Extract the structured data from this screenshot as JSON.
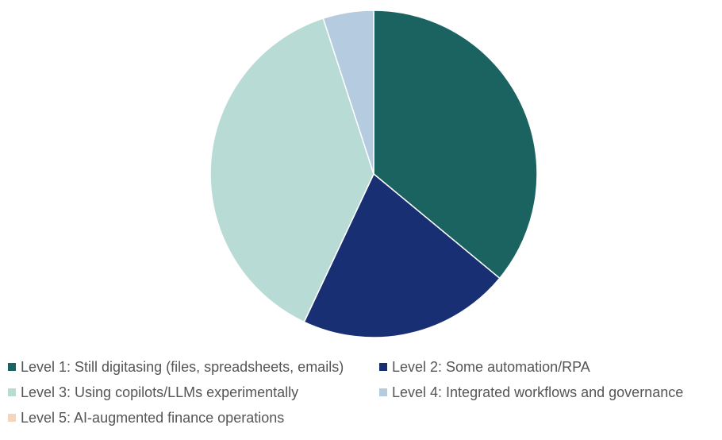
{
  "chart_data": {
    "type": "pie",
    "title": "",
    "start_angle_deg": 0,
    "direction": "clockwise",
    "legend_position": "bottom",
    "slices": [
      {
        "label": "Level 1: Still digitasing (files, spreadsheets, emails)",
        "value": 36,
        "color": "#1a6360"
      },
      {
        "label": "Level 2: Some automation/RPA",
        "value": 21,
        "color": "#182f73"
      },
      {
        "label": "Level 3: Using copilots/LLMs experimentally",
        "value": 38,
        "color": "#b8dcd5"
      },
      {
        "label": "Level 4: Integrated workflows and governance",
        "value": 5,
        "color": "#b5cce0"
      },
      {
        "label": "Level 5: AI-augmented finance operations",
        "value": 0,
        "color": "#f6d5bf"
      }
    ]
  }
}
